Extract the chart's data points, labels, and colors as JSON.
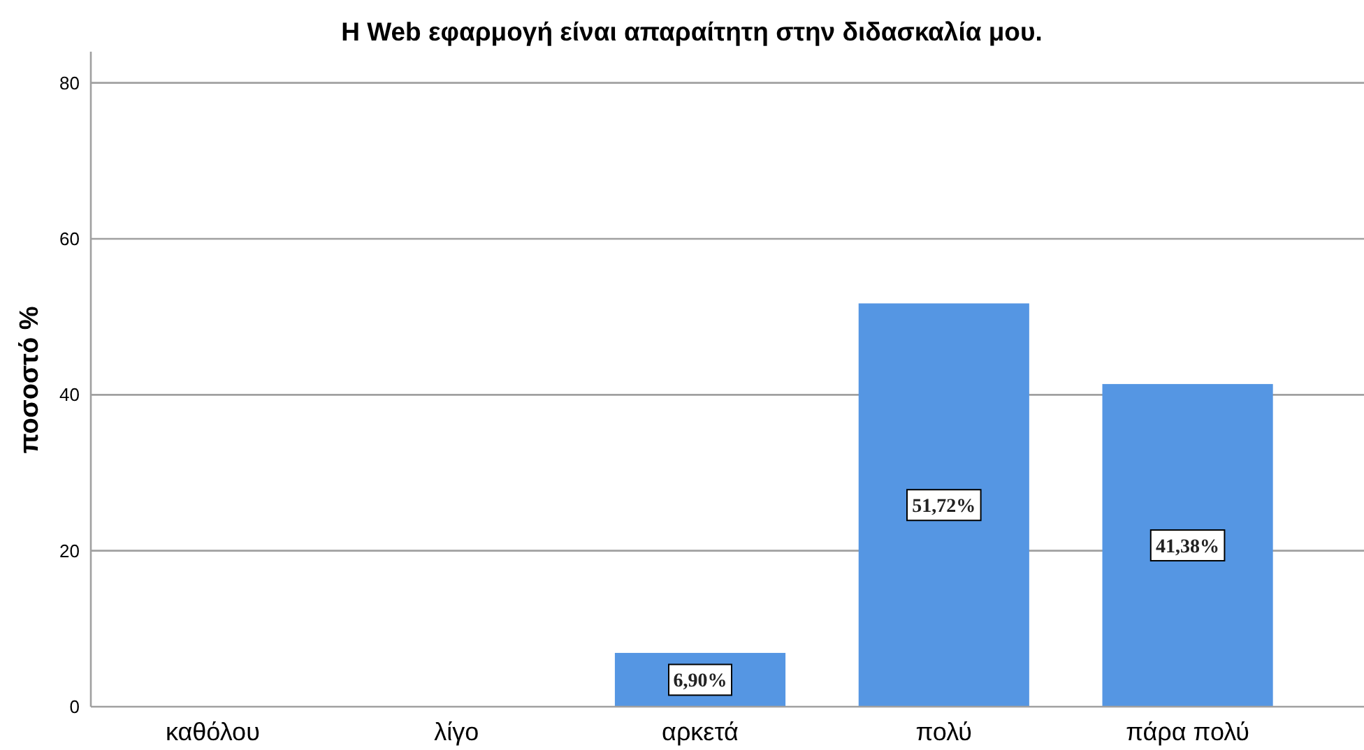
{
  "chart_data": {
    "type": "bar",
    "title": "Η Web εφαρμογή είναι απαραίτητη στην διδασκαλία μου.",
    "ylabel": "ποσοστό %",
    "categories": [
      "καθόλου",
      "λίγο",
      "αρκετά",
      "πολύ",
      "πάρα πολύ"
    ],
    "values": [
      0,
      0,
      6.9,
      51.72,
      41.38
    ],
    "color": "#5596e3",
    "value_labels": [
      null,
      null,
      "6,90%",
      "51,72%",
      "41,38%"
    ],
    "ylim": [
      0,
      84
    ],
    "yticks": [
      0,
      20,
      40,
      60,
      80
    ],
    "grid": "y"
  }
}
